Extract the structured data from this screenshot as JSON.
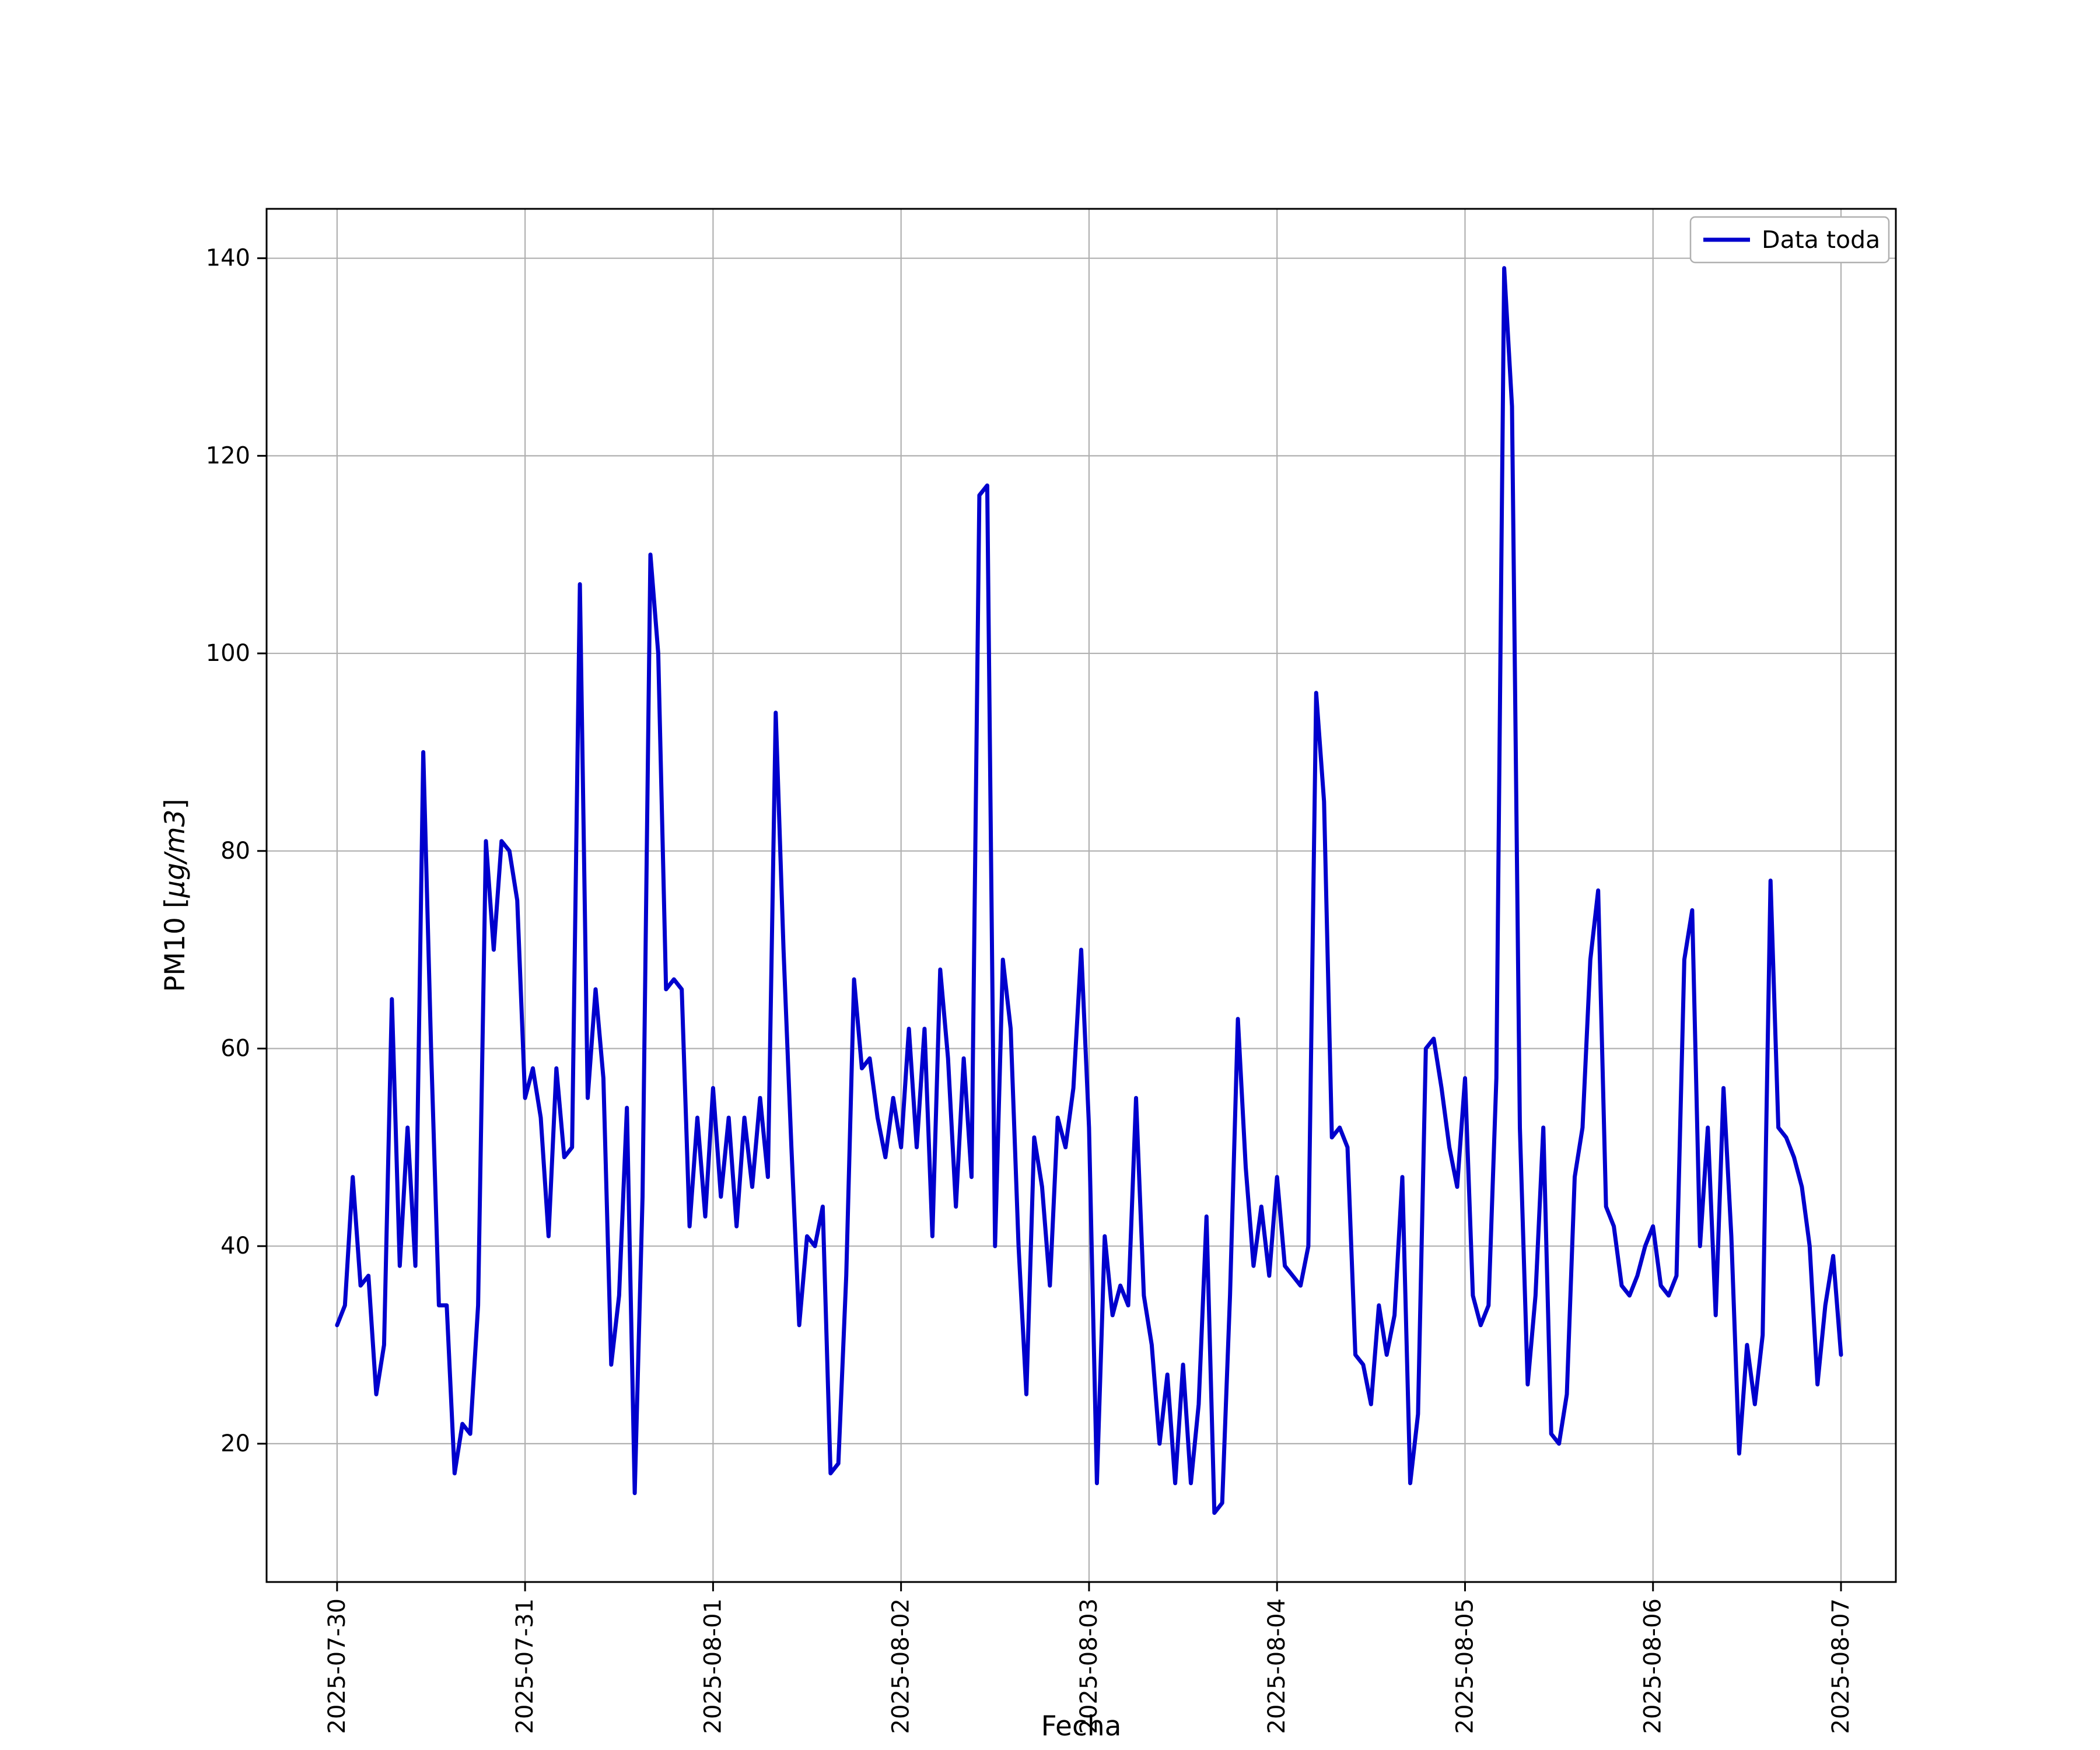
{
  "figure": {
    "background": "#ffffff",
    "grid_color": "#b0b0b0",
    "axis_color": "#000000",
    "legend_edge_color": "#b0b0b0"
  },
  "chart_data": {
    "type": "line",
    "title": "",
    "xlabel": "Fecha",
    "ylabel": "PM10 [µg/m3]",
    "ylabel_parts": {
      "pre": "PM10 [",
      "math": "µg/m3",
      "post": "]"
    },
    "grid": true,
    "legend": {
      "position": "upper right",
      "entries": [
        "Data toda"
      ]
    },
    "x_start": "2025-07-30 00:00",
    "x_interval_hours": 1,
    "xtick_indices": [
      0,
      24,
      48,
      72,
      96,
      120,
      144,
      168,
      192
    ],
    "xticklabels": [
      "2025-07-30",
      "2025-07-31",
      "2025-08-01",
      "2025-08-02",
      "2025-08-03",
      "2025-08-04",
      "2025-08-05",
      "2025-08-06",
      "2025-08-07"
    ],
    "yticks": [
      20,
      40,
      60,
      80,
      100,
      120,
      140
    ],
    "ylim": [
      6,
      145
    ],
    "xlim": [
      -9,
      199
    ],
    "series": [
      {
        "name": "Data toda",
        "color": "#0000cd",
        "values": [
          32,
          34,
          47,
          36,
          37,
          25,
          30,
          65,
          38,
          52,
          38,
          90,
          60,
          34,
          34,
          17,
          22,
          21,
          34,
          81,
          70,
          81,
          80,
          75,
          55,
          58,
          53,
          41,
          58,
          49,
          50,
          107,
          55,
          66,
          57,
          28,
          35,
          54,
          15,
          45,
          110,
          100,
          66,
          67,
          66,
          42,
          53,
          43,
          56,
          45,
          53,
          42,
          53,
          46,
          55,
          47,
          94,
          70,
          50,
          32,
          41,
          40,
          44,
          17,
          18,
          37,
          67,
          58,
          59,
          53,
          49,
          55,
          50,
          62,
          50,
          62,
          41,
          68,
          59,
          44,
          59,
          47,
          116,
          117,
          40,
          69,
          62,
          40,
          25,
          51,
          46,
          36,
          53,
          50,
          56,
          70,
          52,
          16,
          41,
          33,
          36,
          34,
          55,
          35,
          30,
          20,
          27,
          16,
          28,
          16,
          24,
          43,
          13,
          14,
          35,
          63,
          48,
          38,
          44,
          37,
          47,
          38,
          37,
          36,
          40,
          96,
          85,
          51,
          52,
          50,
          29,
          28,
          24,
          34,
          29,
          33,
          47,
          16,
          23,
          60,
          61,
          56,
          50,
          46,
          57,
          35,
          32,
          34,
          57,
          139,
          125,
          52,
          26,
          35,
          52,
          21,
          20,
          25,
          47,
          52,
          69,
          76,
          44,
          42,
          36,
          35,
          37,
          40,
          42,
          36,
          35,
          37,
          69,
          74,
          40,
          52,
          33,
          56,
          41,
          19,
          30,
          24,
          31,
          77,
          52,
          51,
          49,
          46,
          40,
          26,
          34,
          39,
          29
        ]
      }
    ]
  }
}
